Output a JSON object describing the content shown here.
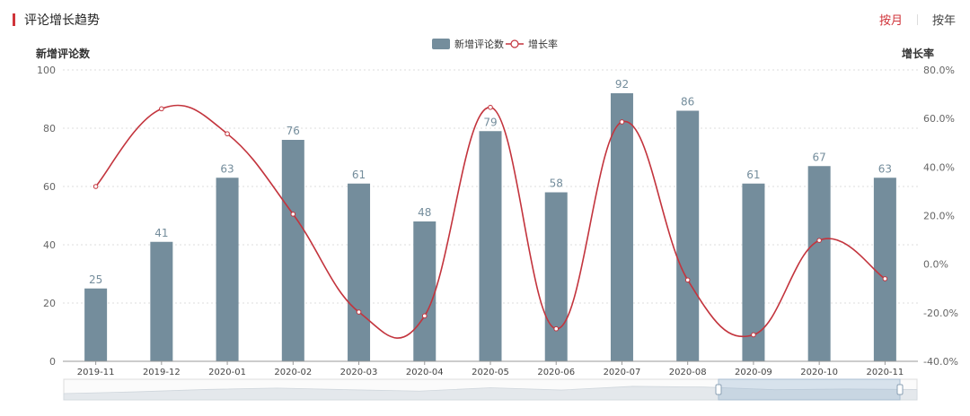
{
  "header": {
    "title": "评论增长趋势",
    "toggle": {
      "month_label": "按月",
      "year_label": "按年",
      "active": "month"
    }
  },
  "colors": {
    "bar": "#748d9c",
    "line": "#c3343d",
    "accent": "#d0343a",
    "grid": "#dcdcdc"
  },
  "chart_data": {
    "type": "bar",
    "categories": [
      "2019-11",
      "2019-12",
      "2020-01",
      "2020-02",
      "2020-03",
      "2020-04",
      "2020-05",
      "2020-06",
      "2020-07",
      "2020-08",
      "2020-09",
      "2020-10",
      "2020-11"
    ],
    "series": [
      {
        "name": "新增评论数",
        "type": "bar",
        "axis": "left",
        "values": [
          25,
          41,
          63,
          76,
          61,
          48,
          79,
          58,
          92,
          86,
          61,
          67,
          63
        ]
      },
      {
        "name": "增长率",
        "type": "line",
        "axis": "right",
        "smooth": true,
        "values": [
          32.0,
          64.0,
          53.7,
          20.6,
          -19.7,
          -21.3,
          64.6,
          -26.6,
          58.6,
          -6.5,
          -29.1,
          9.8,
          -6.0
        ]
      }
    ],
    "ylabel_left": "新增评论数",
    "ylabel_right": "增长率",
    "ylim_left": [
      0,
      100
    ],
    "yticks_left": [
      0,
      20,
      40,
      60,
      80,
      100
    ],
    "ylim_right": [
      -40,
      80
    ],
    "yticks_right": [
      "80.0%",
      "60.0%",
      "40.0%",
      "20.0%",
      "0.0%",
      "-20.0%",
      "-40.0%"
    ],
    "legend_position": "top-center",
    "data_labels": true,
    "grid": true
  }
}
